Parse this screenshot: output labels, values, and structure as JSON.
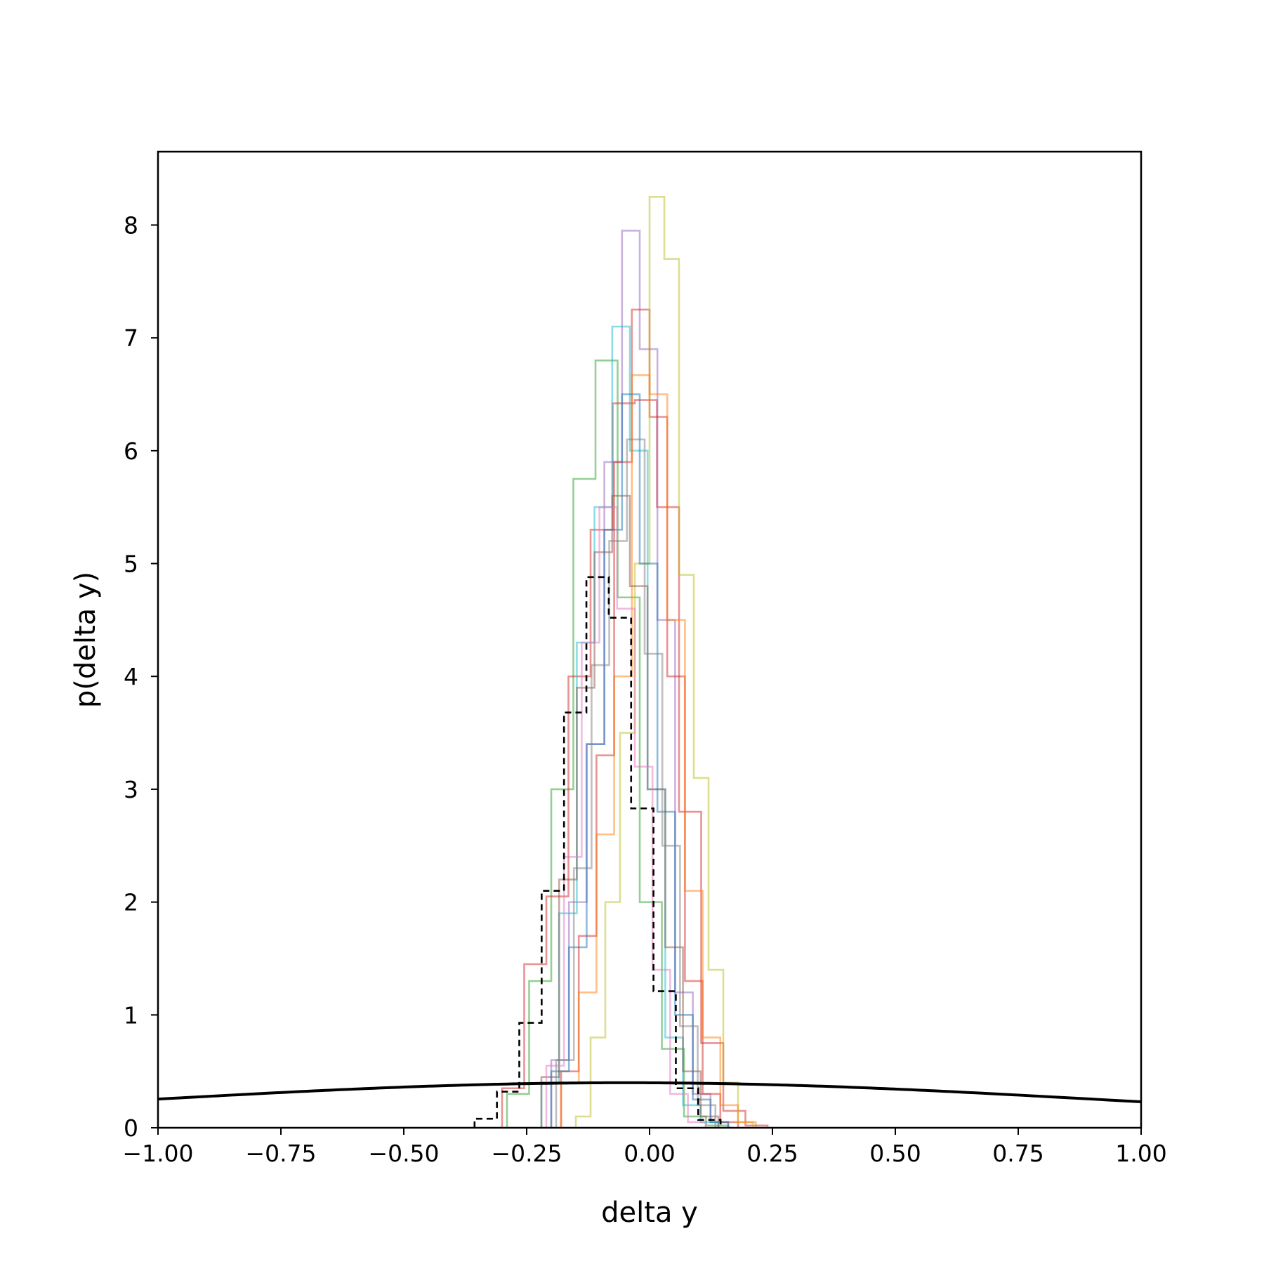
{
  "chart_data": {
    "type": "histogram",
    "title": "",
    "xlabel": "delta y",
    "ylabel": "p(delta y)",
    "xlim": [
      -1.0,
      1.0
    ],
    "ylim": [
      0,
      8.65
    ],
    "x_ticks": [
      -1.0,
      -0.75,
      -0.5,
      -0.25,
      0.0,
      0.25,
      0.5,
      0.75,
      1.0
    ],
    "x_tick_labels": [
      "−1.00",
      "−0.75",
      "−0.50",
      "−0.25",
      "0.00",
      "0.25",
      "0.50",
      "0.75",
      "1.00"
    ],
    "y_ticks": [
      0,
      1,
      2,
      3,
      4,
      5,
      6,
      7,
      8
    ],
    "y_tick_labels": [
      "0",
      "1",
      "2",
      "3",
      "4",
      "5",
      "6",
      "7",
      "8"
    ],
    "grid": false,
    "legend": "none",
    "colors": {
      "blue": "#1f77b4",
      "orange": "#ff7f0e",
      "green": "#2ca02c",
      "red": "#d62728",
      "purple": "#9467bd",
      "brown": "#8c564b",
      "pink": "#e377c2",
      "gray": "#7f7f7f",
      "olive": "#bcbd22",
      "cyan": "#17becf",
      "black": "#000000"
    },
    "series": [
      {
        "color": "#2ca02c",
        "bin_width": 0.045,
        "edges_start": -0.29,
        "values": [
          0.3,
          1.3,
          3.0,
          5.75,
          6.8,
          4.7,
          2.0,
          0.7,
          0.1,
          0.02
        ]
      },
      {
        "color": "#d62728",
        "bin_width": 0.045,
        "edges_start": -0.3,
        "values": [
          0.35,
          1.45,
          2.05,
          4.0,
          5.3,
          6.42,
          6.45,
          5.5,
          2.8,
          0.75,
          0.15,
          0.02
        ]
      },
      {
        "color": "#9467bd",
        "bin_width": 0.036,
        "edges_start": -0.2,
        "values": [
          0.6,
          2.0,
          3.4,
          5.9,
          7.95,
          6.9,
          4.5,
          1.2,
          0.3,
          0.05
        ]
      },
      {
        "color": "#17becf",
        "bin_width": 0.036,
        "edges_start": -0.22,
        "values": [
          0.4,
          1.9,
          4.3,
          5.5,
          7.1,
          6.0,
          3.0,
          0.8,
          0.2,
          0.05
        ]
      },
      {
        "color": "#d62728",
        "bin_width": 0.036,
        "edges_start": -0.18,
        "values": [
          0.5,
          1.7,
          3.3,
          5.9,
          7.25,
          6.3,
          4.0,
          1.3,
          0.3,
          0.05
        ]
      },
      {
        "color": "#bcbd22",
        "bin_width": 0.03,
        "edges_start": -0.15,
        "values": [
          0.1,
          0.8,
          2.0,
          3.5,
          5.0,
          8.25,
          7.7,
          4.9,
          3.1,
          1.4,
          0.4,
          0.05
        ]
      },
      {
        "color": "#ff7f0e",
        "bin_width": 0.036,
        "edges_start": -0.18,
        "values": [
          0.4,
          1.2,
          2.6,
          4.0,
          6.67,
          6.5,
          4.5,
          2.1,
          0.8,
          0.2,
          0.05
        ]
      },
      {
        "color": "#1f77b4",
        "bin_width": 0.036,
        "edges_start": -0.2,
        "values": [
          0.5,
          1.6,
          3.4,
          5.3,
          6.5,
          5.0,
          2.8,
          1.0,
          0.25,
          0.05
        ]
      },
      {
        "color": "#8c564b",
        "bin_width": 0.036,
        "edges_start": -0.22,
        "values": [
          0.45,
          2.2,
          3.9,
          5.1,
          5.6,
          4.8,
          3.0,
          1.6,
          0.5,
          0.1
        ]
      },
      {
        "color": "#e377c2",
        "bin_width": 0.036,
        "edges_start": -0.21,
        "values": [
          0.55,
          2.4,
          4.3,
          5.5,
          4.6,
          3.2,
          1.4,
          0.3,
          0.05
        ]
      },
      {
        "color": "#7f7f7f",
        "bin_width": 0.036,
        "edges_start": -0.19,
        "values": [
          0.6,
          2.3,
          4.1,
          5.2,
          6.1,
          4.2,
          2.5,
          0.9,
          0.2
        ]
      }
    ],
    "mean_histogram": {
      "color": "#000000",
      "style": "dashed",
      "bin_width": 0.0455,
      "edges_start": -0.356,
      "values": [
        0.08,
        0.32,
        0.93,
        2.1,
        3.68,
        4.88,
        4.52,
        2.83,
        1.21,
        0.35,
        0.07
      ]
    },
    "normal_curve": {
      "color": "#000000",
      "mean": -0.05,
      "std": 1.0,
      "peak": 0.399
    }
  }
}
